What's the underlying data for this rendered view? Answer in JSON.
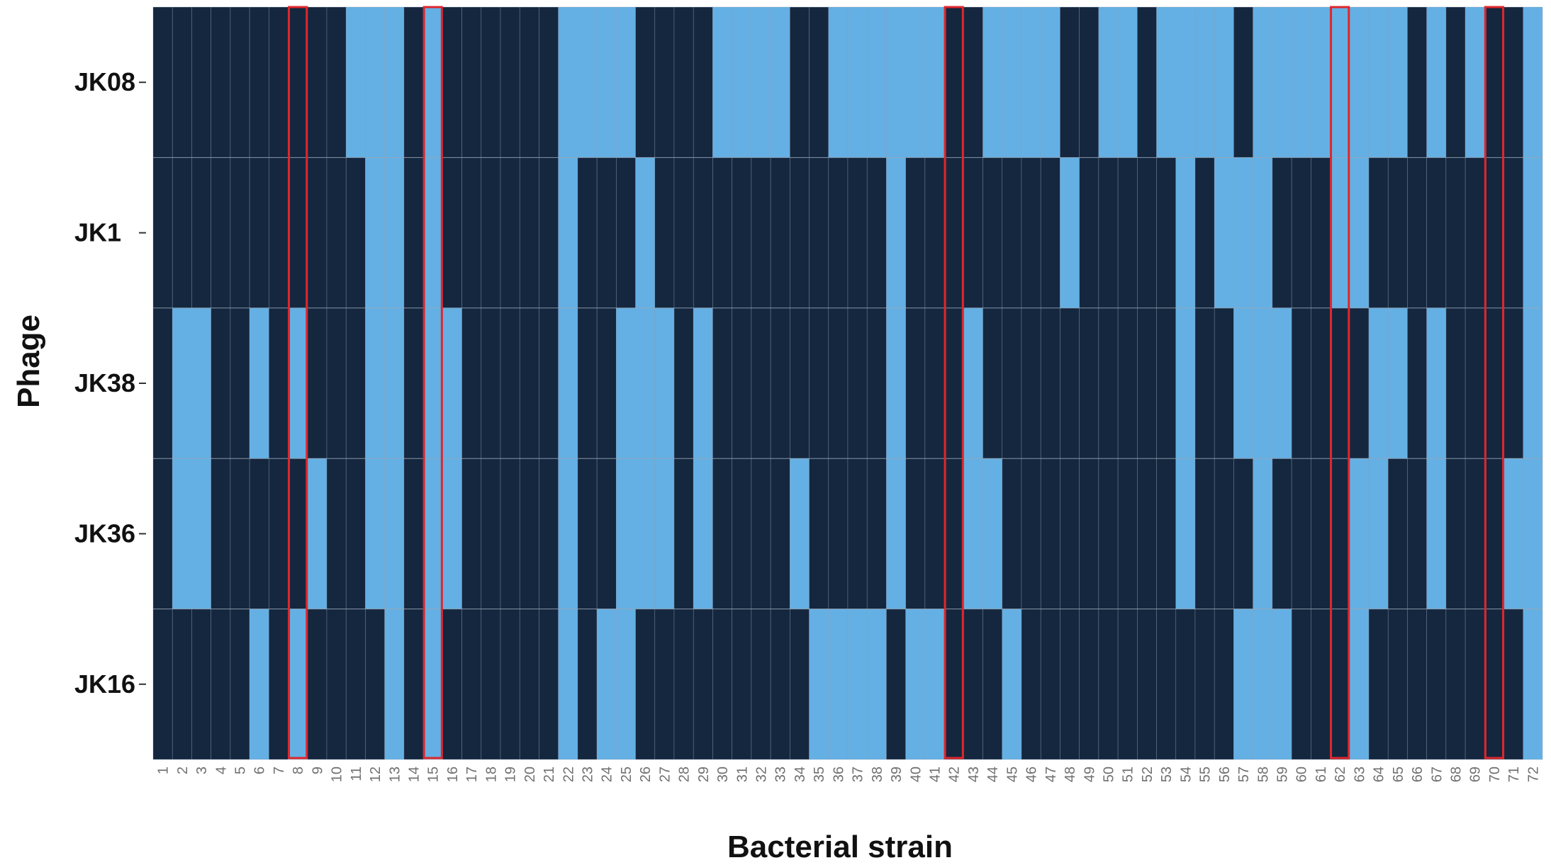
{
  "chart_data": {
    "type": "heatmap",
    "title": "",
    "xlabel": "Bacterial strain",
    "ylabel": "Phage",
    "rows": [
      "JK08",
      "JK1",
      "JK38",
      "JK36",
      "JK16"
    ],
    "columns": [
      "1",
      "2",
      "3",
      "4",
      "5",
      "6",
      "7",
      "8",
      "9",
      "10",
      "11",
      "12",
      "13",
      "14",
      "15",
      "16",
      "17",
      "18",
      "19",
      "20",
      "21",
      "22",
      "23",
      "24",
      "25",
      "26",
      "27",
      "28",
      "29",
      "30",
      "31",
      "32",
      "33",
      "34",
      "35",
      "36",
      "37",
      "38",
      "39",
      "40",
      "41",
      "42",
      "43",
      "44",
      "45",
      "46",
      "47",
      "48",
      "49",
      "50",
      "51",
      "52",
      "53",
      "54",
      "55",
      "56",
      "57",
      "58",
      "59",
      "60",
      "61",
      "62",
      "63",
      "64",
      "65",
      "66",
      "67",
      "68",
      "69",
      "70",
      "71",
      "72"
    ],
    "values": [
      [
        1,
        1,
        1,
        1,
        1,
        1,
        1,
        1,
        1,
        1,
        0,
        0,
        0,
        1,
        0,
        1,
        1,
        1,
        1,
        1,
        1,
        0,
        0,
        0,
        0,
        1,
        1,
        1,
        1,
        0,
        0,
        0,
        0,
        1,
        1,
        0,
        0,
        0,
        0,
        0,
        0,
        1,
        1,
        0,
        0,
        0,
        0,
        1,
        1,
        0,
        0,
        1,
        0,
        0,
        0,
        0,
        1,
        0,
        0,
        0,
        0,
        0,
        0,
        0,
        0,
        1,
        0,
        1,
        0,
        1,
        1,
        0
      ],
      [
        1,
        1,
        1,
        1,
        1,
        1,
        1,
        1,
        1,
        1,
        1,
        0,
        0,
        1,
        0,
        1,
        1,
        1,
        1,
        1,
        1,
        0,
        1,
        1,
        1,
        0,
        1,
        1,
        1,
        1,
        1,
        1,
        1,
        1,
        1,
        1,
        1,
        1,
        0,
        1,
        1,
        1,
        1,
        1,
        1,
        1,
        1,
        0,
        1,
        1,
        1,
        1,
        1,
        0,
        1,
        0,
        0,
        0,
        1,
        1,
        1,
        0,
        0,
        1,
        1,
        1,
        1,
        1,
        1,
        1,
        1,
        0
      ],
      [
        1,
        0,
        0,
        1,
        1,
        0,
        1,
        0,
        1,
        1,
        1,
        0,
        0,
        1,
        0,
        0,
        1,
        1,
        1,
        1,
        1,
        0,
        1,
        1,
        0,
        0,
        0,
        1,
        0,
        1,
        1,
        1,
        1,
        1,
        1,
        1,
        1,
        1,
        0,
        1,
        1,
        1,
        0,
        1,
        1,
        1,
        1,
        1,
        1,
        1,
        1,
        1,
        1,
        0,
        1,
        1,
        0,
        0,
        0,
        1,
        1,
        1,
        1,
        0,
        0,
        1,
        0,
        1,
        1,
        1,
        1,
        0
      ],
      [
        1,
        0,
        0,
        1,
        1,
        1,
        1,
        1,
        0,
        1,
        1,
        0,
        0,
        1,
        0,
        0,
        1,
        1,
        1,
        1,
        1,
        0,
        1,
        1,
        0,
        0,
        0,
        1,
        0,
        1,
        1,
        1,
        1,
        0,
        1,
        1,
        1,
        1,
        0,
        1,
        1,
        1,
        0,
        0,
        1,
        1,
        1,
        1,
        1,
        1,
        1,
        1,
        1,
        0,
        1,
        1,
        1,
        0,
        1,
        1,
        1,
        1,
        0,
        0,
        1,
        1,
        0,
        1,
        1,
        1,
        0,
        0
      ],
      [
        1,
        1,
        1,
        1,
        1,
        0,
        1,
        0,
        1,
        1,
        1,
        1,
        0,
        1,
        0,
        1,
        1,
        1,
        1,
        1,
        1,
        0,
        1,
        0,
        0,
        1,
        1,
        1,
        1,
        1,
        1,
        1,
        1,
        1,
        0,
        0,
        0,
        0,
        1,
        0,
        0,
        1,
        1,
        1,
        0,
        1,
        1,
        1,
        1,
        1,
        1,
        1,
        1,
        1,
        1,
        1,
        0,
        0,
        0,
        1,
        1,
        1,
        0,
        1,
        1,
        1,
        1,
        1,
        1,
        1,
        1,
        0
      ]
    ],
    "value_meaning": {
      "1": "dark",
      "0": "light"
    },
    "colors": {
      "dark": "#14273f",
      "light": "#64b0e4",
      "highlight": "#e0262b"
    },
    "highlighted_columns": [
      "8",
      "15",
      "42",
      "62",
      "70"
    ],
    "grid": true
  }
}
